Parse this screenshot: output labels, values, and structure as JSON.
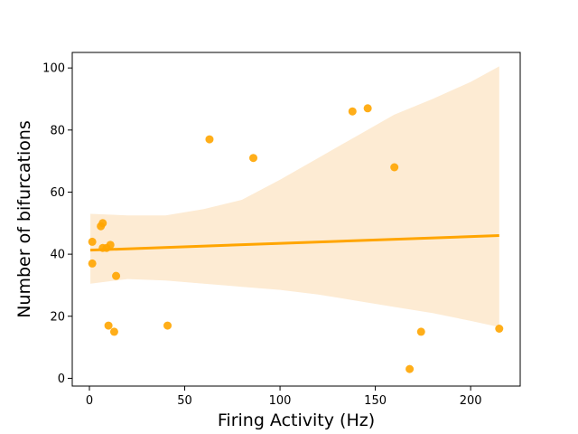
{
  "chart_data": {
    "type": "scatter",
    "title": "",
    "xlabel": "Firing Activity (Hz)",
    "ylabel": "Number of bifurcations",
    "xlim": [
      -9,
      226
    ],
    "ylim": [
      -2.5,
      105
    ],
    "xticks": [
      0,
      50,
      100,
      150,
      200
    ],
    "yticks": [
      0,
      20,
      40,
      60,
      80,
      100
    ],
    "grid": false,
    "legend": "none",
    "colors": {
      "points": "#ffa500",
      "regression_line": "#ffa500",
      "confidence_band": "#fdebd3"
    },
    "series": [
      {
        "points": [
          {
            "x": 1.5,
            "y": 44
          },
          {
            "x": 1.5,
            "y": 37
          },
          {
            "x": 6,
            "y": 49
          },
          {
            "x": 7,
            "y": 50
          },
          {
            "x": 7,
            "y": 42
          },
          {
            "x": 9,
            "y": 42
          },
          {
            "x": 10,
            "y": 17
          },
          {
            "x": 11,
            "y": 43
          },
          {
            "x": 13,
            "y": 15
          },
          {
            "x": 14,
            "y": 33
          },
          {
            "x": 41,
            "y": 17
          },
          {
            "x": 63,
            "y": 77
          },
          {
            "x": 86,
            "y": 71
          },
          {
            "x": 138,
            "y": 86
          },
          {
            "x": 146,
            "y": 87
          },
          {
            "x": 160,
            "y": 68
          },
          {
            "x": 168,
            "y": 3
          },
          {
            "x": 174,
            "y": 15
          },
          {
            "x": 215,
            "y": 16
          }
        ]
      }
    ],
    "regression": {
      "x": [
        0.5,
        215
      ],
      "y": [
        41.3,
        46.0
      ]
    },
    "confidence_band": {
      "x": [
        0.5,
        20,
        40,
        60,
        80,
        100,
        120,
        140,
        160,
        180,
        200,
        215
      ],
      "upper": [
        53.0,
        52.5,
        52.5,
        54.5,
        57.5,
        64.0,
        71.0,
        78.0,
        85.0,
        90.0,
        95.5,
        100.5
      ],
      "lower": [
        30.5,
        32.0,
        31.5,
        30.5,
        29.5,
        28.5,
        27.0,
        25.0,
        23.0,
        21.0,
        18.5,
        16.5
      ]
    }
  }
}
